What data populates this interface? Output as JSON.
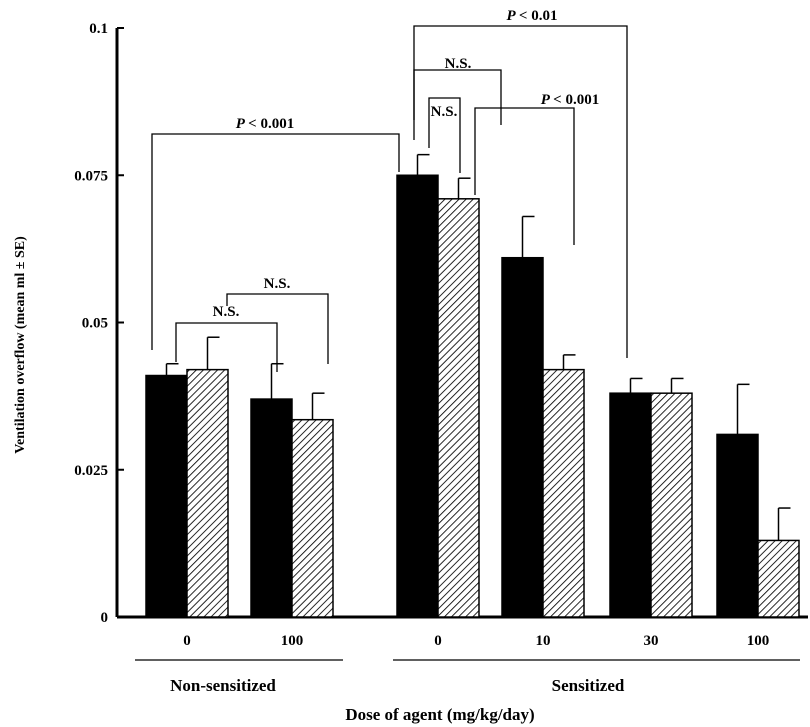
{
  "chart_data": {
    "type": "bar",
    "ylabel": "Ventilation overflow (mean ml ± SE)",
    "xlabel": "Dose of agent (mg/kg/day)",
    "ylim": [
      0,
      0.1
    ],
    "yticks": [
      "0",
      "0.025",
      "0.05",
      "0.075",
      "0.1"
    ],
    "ytick_values": [
      0,
      0.025,
      0.05,
      0.075,
      0.1
    ],
    "grid": false,
    "groups": [
      {
        "label": "Non-sensitized",
        "doses": [
          "0",
          "100"
        ]
      },
      {
        "label": "Sensitized",
        "doses": [
          "0",
          "10",
          "30",
          "100"
        ]
      }
    ],
    "categories": [
      "0",
      "100",
      "0",
      "10",
      "30",
      "100"
    ],
    "series": [
      {
        "fill": "solid",
        "values": [
          0.041,
          0.037,
          0.075,
          0.061,
          0.038,
          0.031
        ],
        "errors": [
          0.002,
          0.006,
          0.0035,
          0.007,
          0.0025,
          0.0085
        ]
      },
      {
        "fill": "hatched",
        "values": [
          0.042,
          0.0335,
          0.071,
          0.042,
          0.038,
          0.013
        ],
        "errors": [
          0.0055,
          0.0045,
          0.0035,
          0.0025,
          0.0025,
          0.0055
        ]
      }
    ],
    "annotations": [
      {
        "text": "N.S."
      },
      {
        "text": "N.S."
      },
      {
        "text": "< 0.001",
        "prefix": "P"
      },
      {
        "text": "N.S."
      },
      {
        "text": "N.S."
      },
      {
        "text": "< 0.01",
        "prefix": "P"
      },
      {
        "text": "< 0.001",
        "prefix": "P"
      }
    ],
    "colors": {
      "solid": "#000000",
      "hatch": "#000000",
      "background": "#ffffff"
    }
  }
}
